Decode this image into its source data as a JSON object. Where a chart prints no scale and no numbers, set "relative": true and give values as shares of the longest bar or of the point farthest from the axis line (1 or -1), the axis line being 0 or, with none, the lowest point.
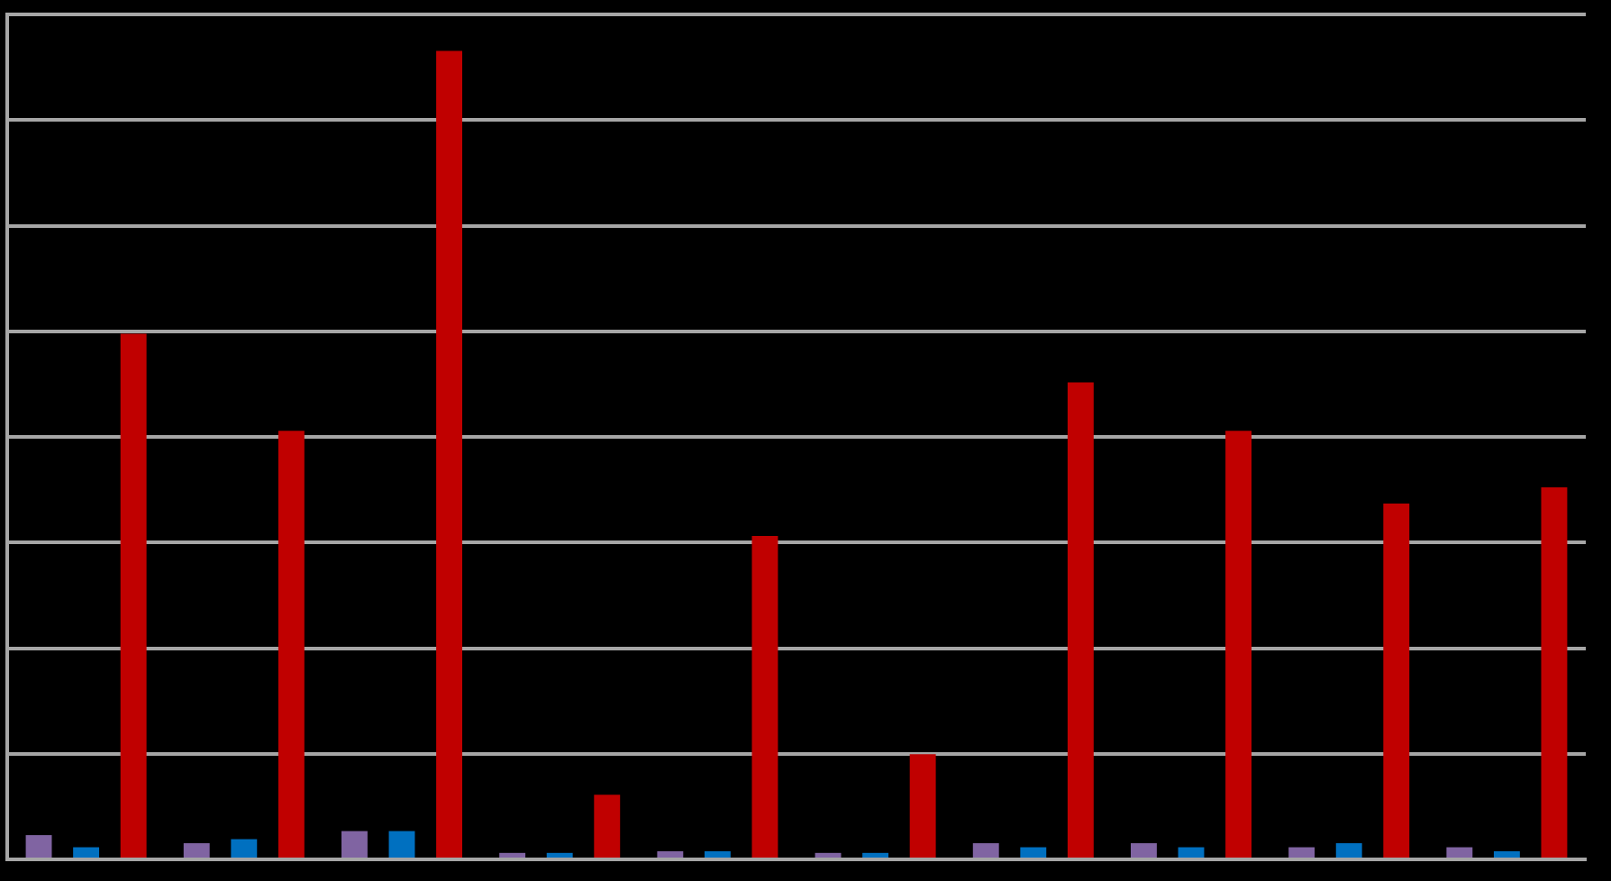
{
  "chart_data": {
    "type": "bar",
    "relative": true,
    "grid": "y",
    "categories": [
      null,
      null,
      null,
      null,
      null,
      null,
      null,
      null,
      null,
      null
    ],
    "series": [
      {
        "color": "#8064a2",
        "values": [
          0.03,
          0.02,
          0.035,
          0.008,
          0.01,
          0.008,
          0.02,
          0.02,
          0.015,
          0.015
        ]
      },
      {
        "color": "#0070c0",
        "values": [
          0.015,
          0.025,
          0.035,
          0.008,
          0.01,
          0.008,
          0.015,
          0.015,
          0.02,
          0.01
        ]
      },
      {
        "color": "#c00000",
        "values": [
          0.65,
          0.53,
          1,
          0.08,
          0.4,
          0.13,
          0.59,
          0.53,
          0.44,
          0.46
        ]
      }
    ]
  }
}
